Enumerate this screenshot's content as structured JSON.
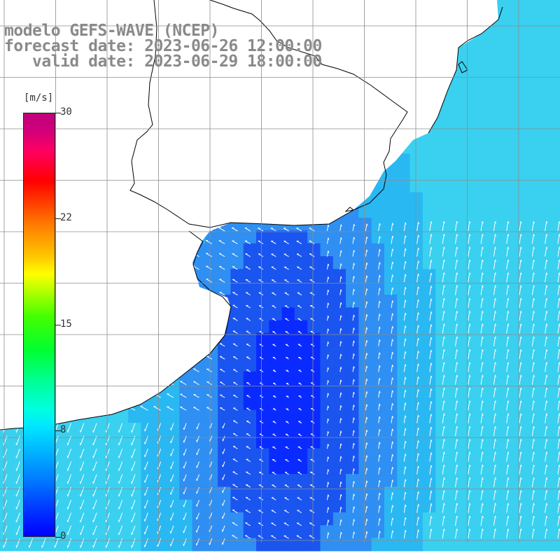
{
  "title": {
    "line1": "modelo GEFS-WAVE (NCEP)",
    "line2": "forecast date: 2023-06-26 12:00:00",
    "line3": "   valid date: 2023-06-29 18:00:00"
  },
  "colorbar": {
    "unit": "[m/s]",
    "ticks": [
      "30",
      "22",
      "15",
      "8",
      "0"
    ],
    "tick_values": [
      30,
      22.5,
      15,
      7.5,
      0
    ],
    "range": [
      0,
      30
    ],
    "colors": [
      "#0000ff",
      "#0078ff",
      "#00e6ff",
      "#00ff90",
      "#44ff00",
      "#ffff00",
      "#ff7800",
      "#ff0000",
      "#c0007a"
    ]
  },
  "map": {
    "land_color": "#ffffff",
    "coast_color": "#000000",
    "grid_color": "#8c8c8c",
    "arrow_color": "#ffffff",
    "field_colors": {
      "calm": "#0a2bff",
      "low": "#1a55f0",
      "mid": "#2f8ff2",
      "high": "#2ab8f3",
      "max": "#3ad0f0"
    }
  }
}
